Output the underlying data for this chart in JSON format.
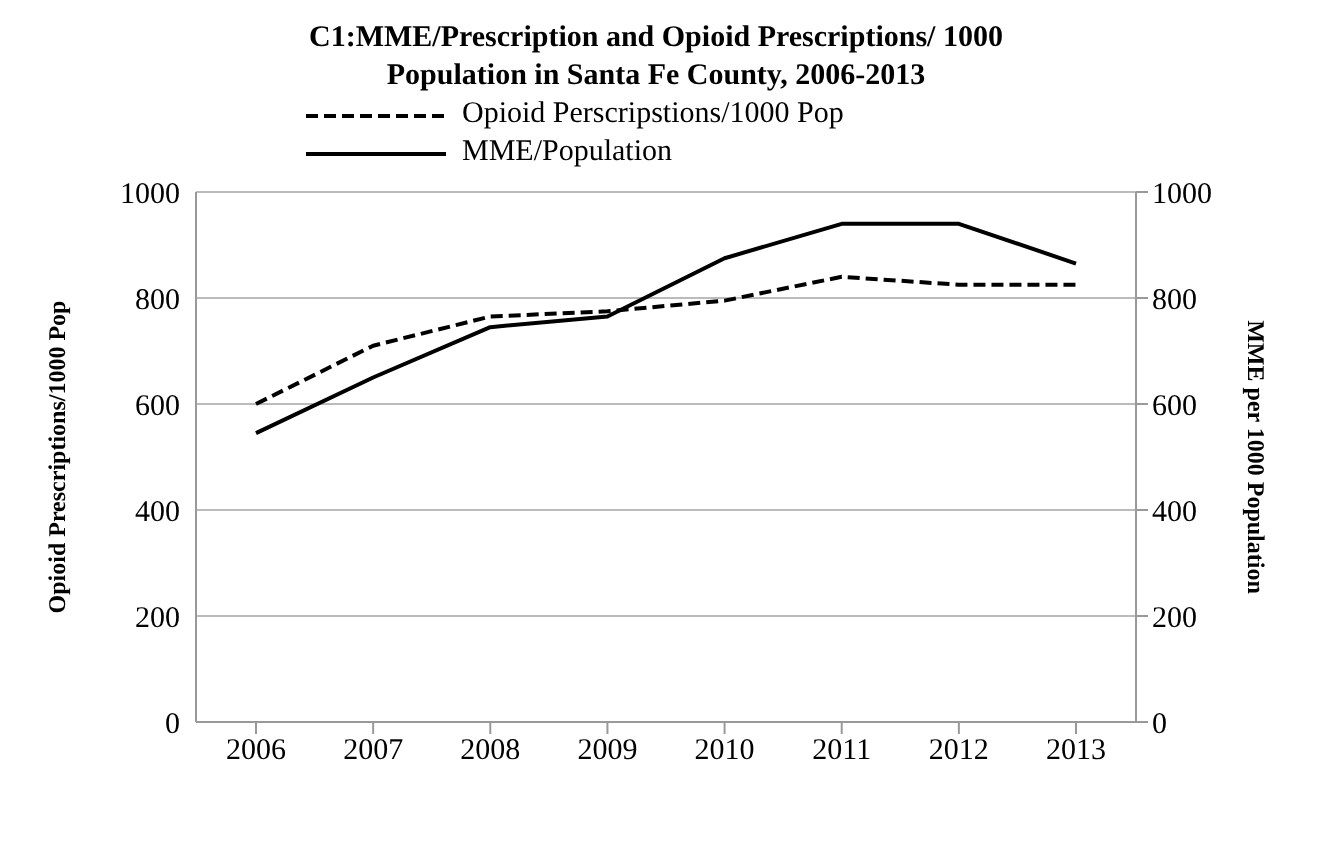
{
  "chart_data": {
    "type": "line",
    "title": "C1:MME/Prescription and Opioid Prescriptions/ 1000 Population in Santa Fe County, 2006-2013",
    "ylabel": "Opioid Prescriptions/1000 Pop",
    "y2label": "MME per 1000 Population",
    "categories": [
      "2006",
      "2007",
      "2008",
      "2009",
      "2010",
      "2011",
      "2012",
      "2013"
    ],
    "series": [
      {
        "name": "Opioid Perscripstions/1000 Pop",
        "color": "#000000",
        "line_style": "dashed",
        "values": [
          600,
          710,
          765,
          775,
          795,
          840,
          825,
          825
        ]
      },
      {
        "name": "MME/Population",
        "color": "#000000",
        "line_style": "solid",
        "axis": "y2",
        "values": [
          545,
          650,
          745,
          765,
          875,
          940,
          940,
          865
        ]
      }
    ],
    "ylim": [
      0,
      1000
    ],
    "yticks": [
      0,
      200,
      400,
      600,
      800,
      1000
    ],
    "y2lim": [
      0,
      1000
    ],
    "y2ticks": [
      0,
      200,
      400,
      600,
      800,
      1000
    ],
    "grid": "y",
    "legend": "top",
    "marker": "none"
  }
}
